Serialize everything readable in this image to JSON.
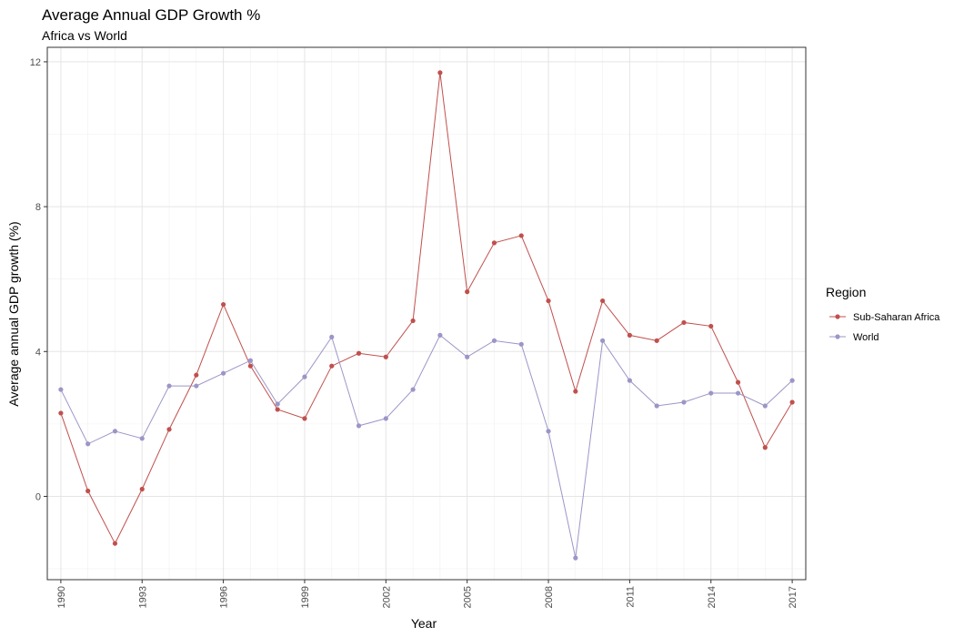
{
  "chart_data": {
    "type": "line",
    "title": "Average Annual GDP Growth %",
    "subtitle": "Africa vs World",
    "xlabel": "Year",
    "ylabel": "Average annual GDP growth (%)",
    "xlim": [
      1989.5,
      2017.5
    ],
    "ylim": [
      -2.3,
      12.4
    ],
    "x_ticks": [
      1990,
      1993,
      1996,
      1999,
      2002,
      2005,
      2008,
      2011,
      2014,
      2017
    ],
    "y_ticks": [
      0,
      4,
      8,
      12
    ],
    "y_ticks_minor": [
      -2,
      2,
      6,
      10
    ],
    "grid": true,
    "legend": {
      "title": "Region",
      "position": "right"
    },
    "x": [
      1990,
      1991,
      1992,
      1993,
      1994,
      1995,
      1996,
      1997,
      1998,
      1999,
      2000,
      2001,
      2002,
      2003,
      2004,
      2005,
      2006,
      2007,
      2008,
      2009,
      2010,
      2011,
      2012,
      2013,
      2014,
      2015,
      2016,
      2017
    ],
    "series": [
      {
        "name": "Sub-Saharan Africa",
        "color": "#c0504d",
        "values": [
          2.3,
          0.15,
          -1.3,
          0.2,
          1.85,
          3.35,
          5.3,
          3.6,
          2.4,
          2.15,
          3.6,
          3.95,
          3.85,
          4.85,
          11.7,
          5.65,
          7.0,
          7.2,
          5.4,
          2.9,
          5.4,
          4.45,
          4.3,
          4.8,
          4.7,
          3.15,
          1.35,
          2.6
        ]
      },
      {
        "name": "World",
        "color": "#9b96c7",
        "values": [
          2.95,
          1.45,
          1.8,
          1.6,
          3.05,
          3.05,
          3.4,
          3.75,
          2.55,
          3.3,
          4.4,
          1.95,
          2.15,
          2.95,
          4.45,
          3.85,
          4.3,
          4.2,
          1.8,
          -1.7,
          4.3,
          3.2,
          2.5,
          2.6,
          2.85,
          2.85,
          2.5,
          3.2
        ]
      }
    ]
  }
}
